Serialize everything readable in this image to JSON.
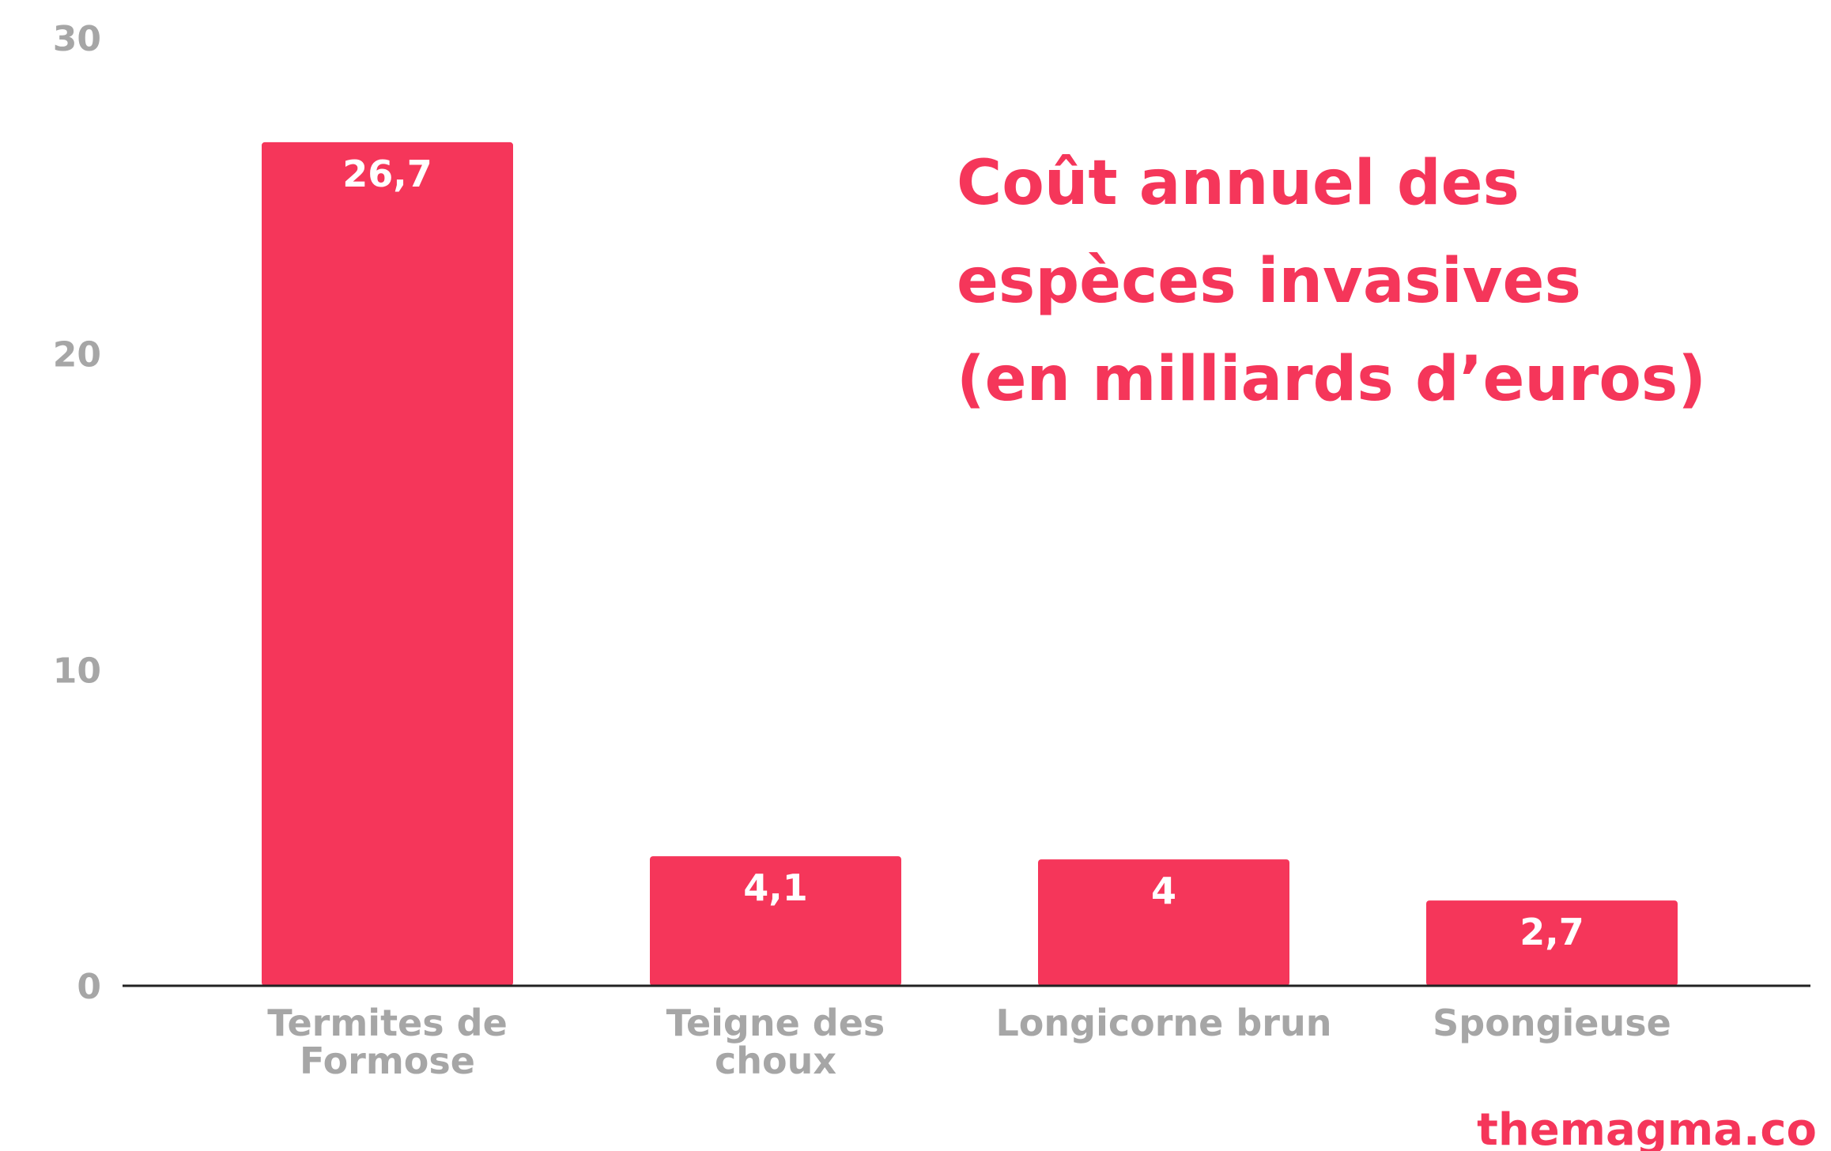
{
  "colors": {
    "accent": "#f5365a",
    "axis": "#222222",
    "tick_text": "#a6a6a6",
    "label_text": "#ffffff"
  },
  "chart_data": {
    "type": "bar",
    "title_lines": [
      "Coût annuel des",
      "espèces invasives",
      "(en milliards d’euros)"
    ],
    "categories": [
      [
        "Termites de",
        "Formose"
      ],
      [
        "Teigne des",
        "choux"
      ],
      [
        "Longicorne brun"
      ],
      [
        "Spongieuse"
      ]
    ],
    "values": [
      26.7,
      4.1,
      4,
      2.7
    ],
    "value_labels": [
      "26,7",
      "4,1",
      "4",
      "2,7"
    ],
    "ylim": [
      0,
      30
    ],
    "yticks": [
      0,
      10,
      20,
      30
    ],
    "grid": false,
    "xlabel": "",
    "ylabel": ""
  },
  "watermark": "themagma.co"
}
